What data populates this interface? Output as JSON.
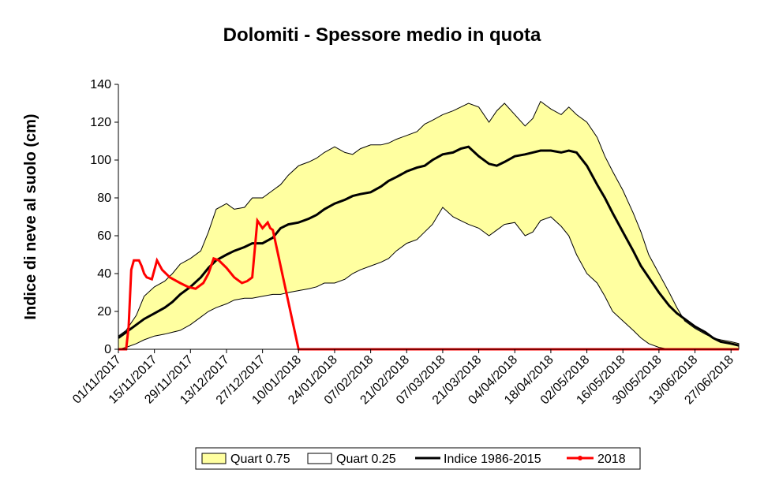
{
  "chart_data": {
    "type": "area",
    "title": "Dolomiti - Spessore medio in quota",
    "xlabel": "",
    "ylabel": "Indice di neve al suolo (cm)",
    "ylim": [
      0,
      140
    ],
    "yticks": [
      0,
      20,
      40,
      60,
      80,
      100,
      120,
      140
    ],
    "xrange": [
      "01/11/2017",
      "30/06/2018"
    ],
    "xtick_labels": [
      "01/11/2017",
      "15/11/2017",
      "29/11/2017",
      "13/12/2017",
      "27/12/2017",
      "10/01/2018",
      "24/01/2018",
      "07/02/2018",
      "21/02/2018",
      "07/03/2018",
      "21/03/2018",
      "04/04/2018",
      "18/04/2018",
      "02/05/2018",
      "16/05/2018",
      "30/05/2018",
      "13/06/2018",
      "27/06/2018"
    ],
    "grid": false,
    "legend_position": "bottom",
    "series": [
      {
        "name": "Quart 0.75",
        "kind": "band-upper",
        "color": "#ffffa0",
        "x": [
          "01/11/2017",
          "04/11/2017",
          "08/11/2017",
          "11/11/2017",
          "15/11/2017",
          "19/11/2017",
          "22/11/2017",
          "25/11/2017",
          "29/11/2017",
          "03/12/2017",
          "06/12/2017",
          "09/12/2017",
          "13/12/2017",
          "16/12/2017",
          "20/12/2017",
          "23/12/2017",
          "27/12/2017",
          "31/12/2017",
          "03/01/2018",
          "06/01/2018",
          "10/01/2018",
          "14/01/2018",
          "17/01/2018",
          "20/01/2018",
          "24/01/2018",
          "28/01/2018",
          "31/01/2018",
          "03/02/2018",
          "07/02/2018",
          "11/02/2018",
          "14/02/2018",
          "17/02/2018",
          "21/02/2018",
          "25/02/2018",
          "28/02/2018",
          "03/03/2018",
          "07/03/2018",
          "11/03/2018",
          "14/03/2018",
          "17/03/2018",
          "21/03/2018",
          "25/03/2018",
          "28/03/2018",
          "31/03/2018",
          "04/04/2018",
          "08/04/2018",
          "11/04/2018",
          "14/04/2018",
          "18/04/2018",
          "22/04/2018",
          "25/04/2018",
          "28/04/2018",
          "02/05/2018",
          "06/05/2018",
          "09/05/2018",
          "12/05/2018",
          "16/05/2018",
          "20/05/2018",
          "23/05/2018",
          "26/05/2018",
          "30/05/2018",
          "03/06/2018",
          "06/06/2018",
          "09/06/2018",
          "13/06/2018",
          "17/06/2018",
          "20/06/2018",
          "23/06/2018",
          "27/06/2018",
          "30/06/2018"
        ],
        "values": [
          7,
          10,
          18,
          28,
          33,
          36,
          40,
          45,
          48,
          52,
          62,
          74,
          77,
          74,
          75,
          80,
          80,
          84,
          87,
          92,
          97,
          99,
          101,
          104,
          107,
          104,
          103,
          106,
          108,
          108,
          109,
          111,
          113,
          115,
          119,
          121,
          124,
          126,
          128,
          130,
          128,
          120,
          126,
          130,
          124,
          118,
          122,
          131,
          127,
          124,
          128,
          124,
          120,
          112,
          102,
          94,
          84,
          72,
          62,
          50,
          40,
          30,
          22,
          15,
          11,
          8,
          6,
          5,
          4,
          3
        ]
      },
      {
        "name": "Quart 0.25",
        "kind": "band-lower",
        "color": "#ffffff",
        "x": [
          "01/11/2017",
          "04/11/2017",
          "08/11/2017",
          "11/11/2017",
          "15/11/2017",
          "19/11/2017",
          "22/11/2017",
          "25/11/2017",
          "29/11/2017",
          "03/12/2017",
          "06/12/2017",
          "09/12/2017",
          "13/12/2017",
          "16/12/2017",
          "20/12/2017",
          "23/12/2017",
          "27/12/2017",
          "31/12/2017",
          "03/01/2018",
          "06/01/2018",
          "10/01/2018",
          "14/01/2018",
          "17/01/2018",
          "20/01/2018",
          "24/01/2018",
          "28/01/2018",
          "31/01/2018",
          "03/02/2018",
          "07/02/2018",
          "11/02/2018",
          "14/02/2018",
          "17/02/2018",
          "21/02/2018",
          "25/02/2018",
          "28/02/2018",
          "03/03/2018",
          "07/03/2018",
          "11/03/2018",
          "14/03/2018",
          "17/03/2018",
          "21/03/2018",
          "25/03/2018",
          "28/03/2018",
          "31/03/2018",
          "04/04/2018",
          "08/04/2018",
          "11/04/2018",
          "14/04/2018",
          "18/04/2018",
          "22/04/2018",
          "25/04/2018",
          "28/04/2018",
          "02/05/2018",
          "06/05/2018",
          "09/05/2018",
          "12/05/2018",
          "16/05/2018",
          "20/05/2018",
          "23/05/2018",
          "26/05/2018",
          "30/05/2018",
          "03/06/2018",
          "06/06/2018",
          "09/06/2018",
          "13/06/2018",
          "17/06/2018",
          "20/06/2018",
          "23/06/2018",
          "27/06/2018",
          "30/06/2018"
        ],
        "values": [
          0,
          1,
          3,
          5,
          7,
          8,
          9,
          10,
          13,
          17,
          20,
          22,
          24,
          26,
          27,
          27,
          28,
          29,
          29,
          30,
          31,
          32,
          33,
          35,
          35,
          37,
          40,
          42,
          44,
          46,
          48,
          52,
          56,
          58,
          62,
          66,
          75,
          70,
          68,
          66,
          64,
          60,
          63,
          66,
          67,
          60,
          62,
          68,
          70,
          65,
          60,
          50,
          40,
          35,
          28,
          20,
          15,
          10,
          6,
          3,
          1,
          0,
          0,
          0,
          0,
          0,
          0,
          0,
          0,
          0
        ]
      },
      {
        "name": "Indice 1986-2015",
        "kind": "line",
        "color": "#000000",
        "x": [
          "01/11/2017",
          "04/11/2017",
          "08/11/2017",
          "11/11/2017",
          "15/11/2017",
          "19/11/2017",
          "22/11/2017",
          "25/11/2017",
          "29/11/2017",
          "03/12/2017",
          "06/12/2017",
          "09/12/2017",
          "13/12/2017",
          "16/12/2017",
          "20/12/2017",
          "23/12/2017",
          "27/12/2017",
          "31/12/2017",
          "03/01/2018",
          "06/01/2018",
          "10/01/2018",
          "14/01/2018",
          "17/01/2018",
          "20/01/2018",
          "24/01/2018",
          "28/01/2018",
          "31/01/2018",
          "03/02/2018",
          "07/02/2018",
          "11/02/2018",
          "14/02/2018",
          "17/02/2018",
          "21/02/2018",
          "25/02/2018",
          "28/02/2018",
          "03/03/2018",
          "07/03/2018",
          "11/03/2018",
          "14/03/2018",
          "17/03/2018",
          "21/03/2018",
          "25/03/2018",
          "28/03/2018",
          "31/03/2018",
          "04/04/2018",
          "08/04/2018",
          "11/04/2018",
          "14/04/2018",
          "18/04/2018",
          "22/04/2018",
          "25/04/2018",
          "28/04/2018",
          "02/05/2018",
          "06/05/2018",
          "09/05/2018",
          "12/05/2018",
          "16/05/2018",
          "20/05/2018",
          "23/05/2018",
          "26/05/2018",
          "30/05/2018",
          "03/06/2018",
          "06/06/2018",
          "09/06/2018",
          "13/06/2018",
          "17/06/2018",
          "20/06/2018",
          "23/06/2018",
          "27/06/2018",
          "30/06/2018"
        ],
        "values": [
          6,
          9,
          13,
          16,
          19,
          22,
          25,
          29,
          33,
          38,
          43,
          47,
          50,
          52,
          54,
          56,
          56,
          59,
          64,
          66,
          67,
          69,
          71,
          74,
          77,
          79,
          81,
          82,
          83,
          86,
          89,
          91,
          94,
          96,
          97,
          100,
          103,
          104,
          106,
          107,
          102,
          98,
          97,
          99,
          102,
          103,
          104,
          105,
          105,
          104,
          105,
          104,
          97,
          87,
          80,
          72,
          62,
          52,
          44,
          38,
          30,
          23,
          19,
          16,
          12,
          9,
          6,
          4,
          3,
          2
        ]
      },
      {
        "name": "2018",
        "kind": "line",
        "color": "#ff0000",
        "x": [
          "01/11/2017",
          "04/11/2017",
          "05/11/2017",
          "06/11/2017",
          "07/11/2017",
          "09/11/2017",
          "10/11/2017",
          "11/11/2017",
          "12/11/2017",
          "14/11/2017",
          "16/11/2017",
          "18/11/2017",
          "21/11/2017",
          "25/11/2017",
          "28/11/2017",
          "01/12/2017",
          "04/12/2017",
          "06/12/2017",
          "08/12/2017",
          "10/12/2017",
          "13/12/2017",
          "16/12/2017",
          "19/12/2017",
          "21/12/2017",
          "23/12/2017",
          "25/12/2017",
          "27/12/2017",
          "29/12/2017",
          "30/12/2017",
          "31/12/2017",
          "10/01/2018",
          "30/06/2018"
        ],
        "values": [
          0,
          0,
          12,
          42,
          47,
          47,
          44,
          40,
          38,
          37,
          47,
          42,
          38,
          35,
          33,
          32,
          35,
          40,
          48,
          47,
          43,
          38,
          35,
          36,
          38,
          68,
          64,
          67,
          64,
          63,
          0,
          0
        ]
      }
    ]
  }
}
